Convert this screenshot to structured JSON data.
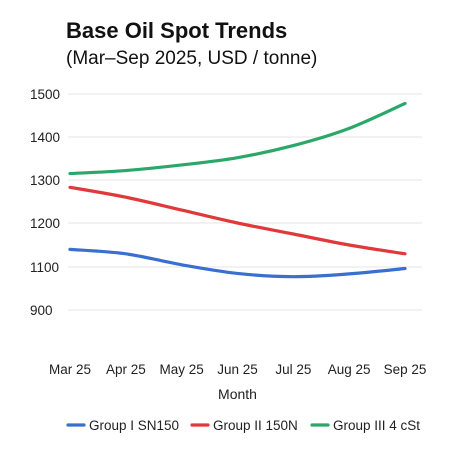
{
  "chart_data": {
    "type": "line",
    "title": "Base Oil Spot Trends",
    "subtitle": "(Mar–Sep 2025, USD / tonne)",
    "xlabel": "Month",
    "ylabel": "",
    "categories": [
      "Mar 25",
      "Apr 25",
      "May 25",
      "Jun 25",
      "Jul 25",
      "Aug 25",
      "Sep 25"
    ],
    "y_ticks": [
      900,
      1100,
      1200,
      1300,
      1400,
      1500
    ],
    "ylim": [
      900,
      1500
    ],
    "grid": "horizontal",
    "legend_position": "bottom",
    "series": [
      {
        "name": "Group I SN150",
        "color": "#3a6fd0",
        "values": [
          1140,
          1130,
          1105,
          1070,
          1055,
          1068,
          1093
        ]
      },
      {
        "name": "Group II 150N",
        "color": "#e0383b",
        "values": [
          1283,
          1260,
          1230,
          1200,
          1175,
          1150,
          1130
        ]
      },
      {
        "name": "Group III 4 cSt",
        "color": "#2aa86a",
        "values": [
          1315,
          1322,
          1335,
          1352,
          1380,
          1420,
          1478
        ]
      }
    ]
  }
}
